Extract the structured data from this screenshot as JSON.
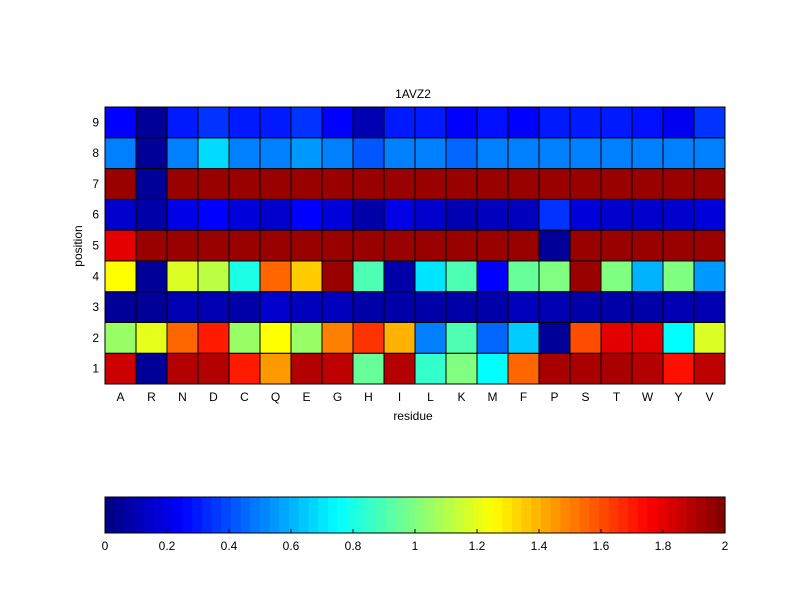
{
  "chart_data": {
    "type": "heatmap",
    "title": "1AVZ2",
    "xlabel": "residue",
    "ylabel": "position",
    "x_categories": [
      "A",
      "R",
      "N",
      "D",
      "C",
      "Q",
      "E",
      "G",
      "H",
      "I",
      "L",
      "K",
      "M",
      "F",
      "P",
      "S",
      "T",
      "W",
      "Y",
      "V"
    ],
    "y_categories": [
      "1",
      "2",
      "3",
      "4",
      "5",
      "6",
      "7",
      "8",
      "9"
    ],
    "values": [
      [
        1.85,
        0.05,
        1.9,
        1.9,
        1.7,
        1.45,
        1.9,
        1.88,
        0.95,
        1.9,
        0.85,
        1.0,
        0.75,
        1.55,
        1.92,
        1.92,
        1.92,
        1.9,
        1.72,
        1.88
      ],
      [
        1.05,
        1.2,
        1.55,
        1.7,
        1.05,
        1.25,
        1.05,
        1.5,
        1.65,
        1.4,
        0.5,
        0.9,
        0.45,
        0.65,
        0.05,
        1.6,
        1.8,
        1.8,
        0.75,
        1.18
      ],
      [
        0.05,
        0.05,
        0.1,
        0.1,
        0.08,
        0.15,
        0.12,
        0.12,
        0.08,
        0.08,
        0.08,
        0.08,
        0.08,
        0.12,
        0.1,
        0.08,
        0.08,
        0.08,
        0.1,
        0.1
      ],
      [
        1.25,
        0.05,
        1.18,
        1.12,
        0.8,
        1.55,
        1.35,
        1.95,
        0.9,
        0.08,
        0.7,
        0.9,
        0.25,
        0.95,
        1.0,
        1.95,
        1.0,
        0.6,
        1.0,
        0.55
      ],
      [
        1.8,
        1.95,
        1.95,
        1.95,
        1.95,
        1.95,
        1.95,
        1.95,
        1.95,
        1.95,
        1.95,
        1.95,
        1.95,
        1.95,
        0.05,
        1.95,
        1.95,
        1.95,
        1.95,
        1.95
      ],
      [
        0.15,
        0.08,
        0.2,
        0.25,
        0.18,
        0.15,
        0.25,
        0.18,
        0.08,
        0.2,
        0.15,
        0.1,
        0.12,
        0.12,
        0.35,
        0.18,
        0.15,
        0.15,
        0.15,
        0.18
      ],
      [
        1.95,
        0.05,
        1.95,
        1.95,
        1.95,
        1.95,
        1.95,
        1.95,
        1.95,
        1.95,
        1.95,
        1.95,
        1.95,
        1.95,
        1.95,
        1.95,
        1.95,
        1.95,
        1.95,
        1.95
      ],
      [
        0.5,
        0.05,
        0.5,
        0.68,
        0.5,
        0.5,
        0.55,
        0.5,
        0.42,
        0.5,
        0.5,
        0.45,
        0.5,
        0.5,
        0.5,
        0.5,
        0.5,
        0.5,
        0.5,
        0.5
      ],
      [
        0.25,
        0.05,
        0.3,
        0.35,
        0.3,
        0.3,
        0.35,
        0.25,
        0.1,
        0.3,
        0.3,
        0.25,
        0.28,
        0.25,
        0.3,
        0.3,
        0.3,
        0.28,
        0.22,
        0.35
      ]
    ],
    "colorbar": {
      "min": 0,
      "max": 2,
      "ticks": [
        "0",
        "0.2",
        "0.4",
        "0.6",
        "0.8",
        "1",
        "1.2",
        "1.4",
        "1.6",
        "1.8",
        "2"
      ],
      "colormap": "jet",
      "steps": 64
    }
  }
}
